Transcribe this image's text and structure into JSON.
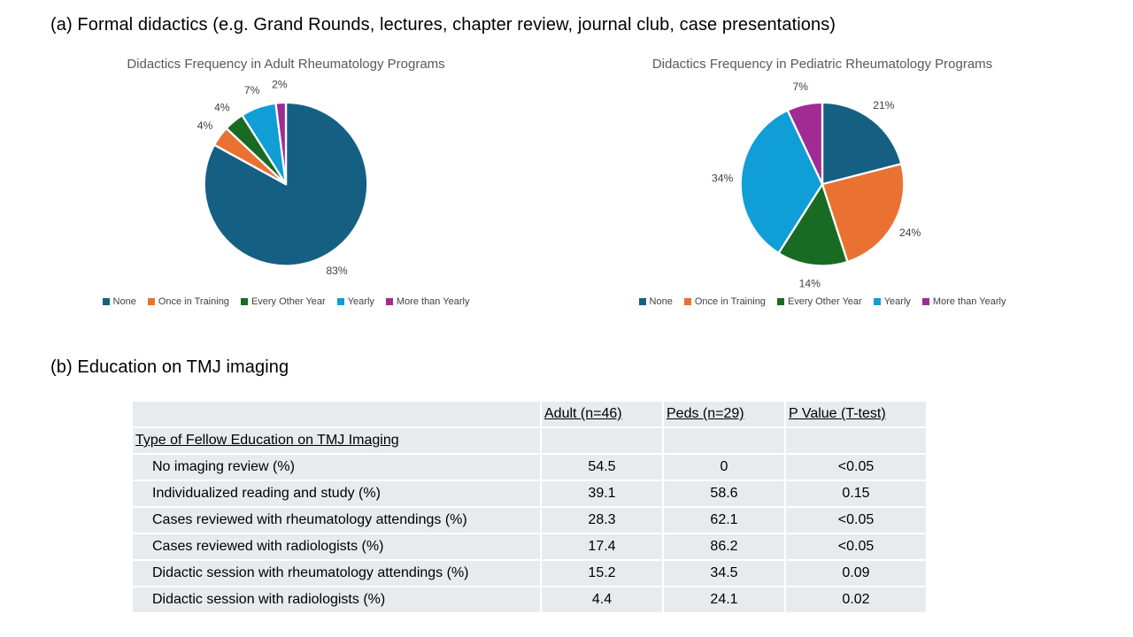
{
  "page": {
    "section_a_title": "(a) Formal didactics (e.g. Grand Rounds, lectures, chapter review, journal club, case presentations)",
    "section_b_title": "(b) Education on TMJ imaging"
  },
  "chart_data": [
    {
      "type": "pie",
      "title": "Didactics Frequency in Adult Rheumatology Programs",
      "categories": [
        "None",
        "Once in Training",
        "Every Other Year",
        "Yearly",
        "More than Yearly"
      ],
      "values": [
        83,
        4,
        4,
        7,
        2
      ],
      "labels": [
        "83%",
        "4%",
        "4%",
        "7%",
        "2%"
      ],
      "colors": [
        "#156082",
        "#E97132",
        "#196B24",
        "#0F9ED5",
        "#A02B93"
      ],
      "legend_position": "bottom",
      "title_color": "#595959"
    },
    {
      "type": "pie",
      "title": "Didactics Frequency in Pediatric Rheumatology Programs",
      "categories": [
        "None",
        "Once in Training",
        "Every Other Year",
        "Yearly",
        "More than Yearly"
      ],
      "values": [
        21,
        24,
        14,
        34,
        7
      ],
      "labels": [
        "21%",
        "24%",
        "14%",
        "34%",
        "7%"
      ],
      "colors": [
        "#156082",
        "#E97132",
        "#196B24",
        "#0F9ED5",
        "#A02B93"
      ],
      "legend_position": "bottom",
      "title_color": "#595959"
    }
  ],
  "table": {
    "headers": [
      "",
      "Adult (n=46)",
      "Peds (n=29)",
      "P Value (T-test)"
    ],
    "group_row": "Type of Fellow Education on TMJ Imaging",
    "rows": [
      {
        "label": "No imaging review (%)",
        "adult": "54.5",
        "peds": "0",
        "p": "<0.05"
      },
      {
        "label": "Individualized reading and study (%)",
        "adult": "39.1",
        "peds": "58.6",
        "p": "0.15"
      },
      {
        "label": "Cases reviewed with rheumatology attendings (%)",
        "adult": "28.3",
        "peds": "62.1",
        "p": "<0.05"
      },
      {
        "label": "Cases reviewed with radiologists (%)",
        "adult": "17.4",
        "peds": "86.2",
        "p": "<0.05"
      },
      {
        "label": "Didactic session with rheumatology attendings (%)",
        "adult": "15.2",
        "peds": "34.5",
        "p": "0.09"
      },
      {
        "label": "Didactic session with radiologists (%)",
        "adult": "4.4",
        "peds": "24.1",
        "p": "0.02"
      }
    ]
  }
}
